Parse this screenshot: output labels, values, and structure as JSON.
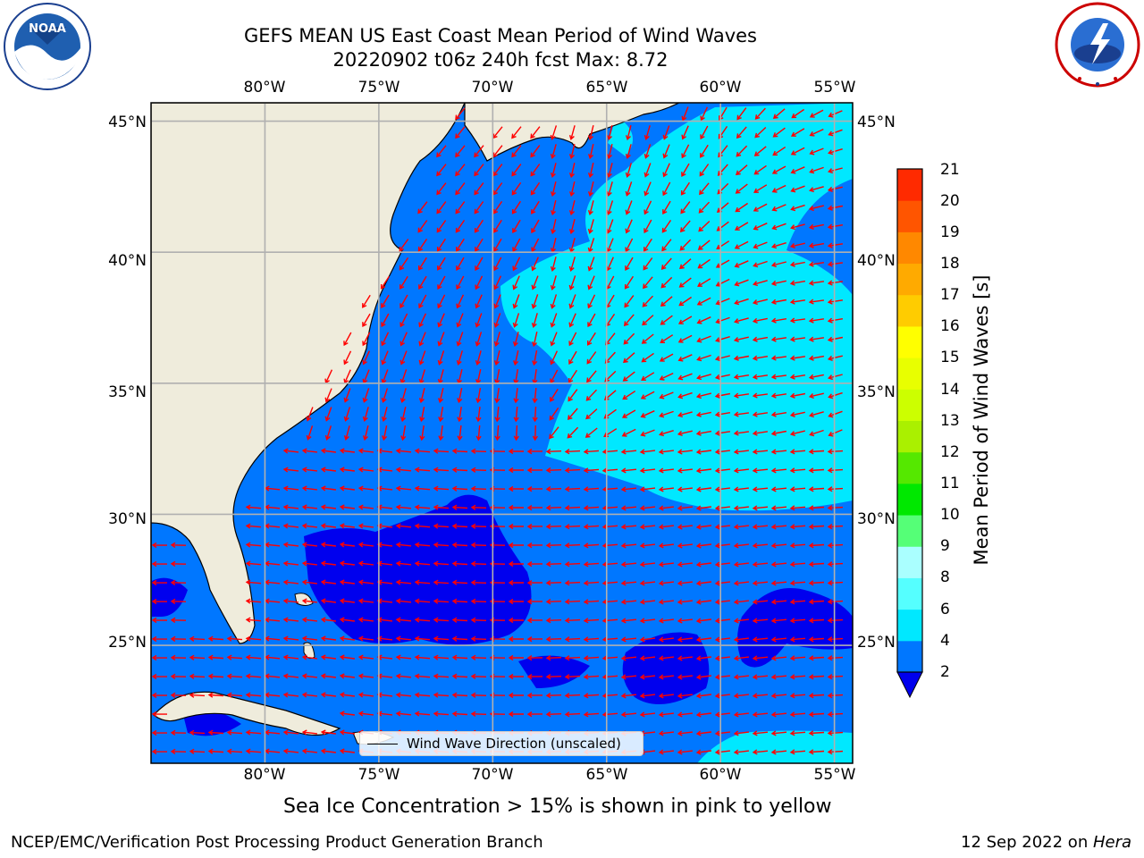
{
  "title": {
    "line1": "GEFS MEAN US East Coast Mean Period of Wind Waves",
    "line2": "20220902 t06z 240h fcst   Max: 8.72"
  },
  "logos": {
    "left_name": "NOAA",
    "left_ring_text": "NATIONAL OCEANIC AND ATMOSPHERIC ADMINISTRATION · U.S. DEPARTMENT OF COMMERCE",
    "right_ring_text": "NATIONAL WEATHER SERVICE"
  },
  "map": {
    "lon_ticks": [
      "80°W",
      "75°W",
      "70°W",
      "65°W",
      "60°W",
      "55°W"
    ],
    "lat_ticks": [
      "45°N",
      "40°N",
      "35°N",
      "30°N",
      "25°N"
    ],
    "lon_values": [
      -80,
      -75,
      -70,
      -65,
      -60,
      -55
    ],
    "lat_values": [
      45,
      40,
      35,
      30,
      25
    ],
    "lon_range": [
      -85,
      -54.2
    ],
    "lat_range": [
      20.5,
      45.7
    ],
    "legend_label": "Wind Wave Direction (unscaled)",
    "arrow_color": "#ff0000",
    "land_color": "#efecdc",
    "grid_color": "#b0b0b0"
  },
  "colorbar": {
    "label": "Mean Period of Wind Waves [s]",
    "ticks": [
      "2",
      "4",
      "6",
      "8",
      "9",
      "10",
      "11",
      "12",
      "13",
      "14",
      "15",
      "16",
      "17",
      "18",
      "19",
      "20",
      "21"
    ],
    "levels": [
      2,
      4,
      6,
      8,
      9,
      10,
      11,
      12,
      13,
      14,
      15,
      16,
      17,
      18,
      19,
      20,
      21
    ],
    "colors": [
      "#0077ff",
      "#00e8ff",
      "#55ffff",
      "#aaffff",
      "#55ff77",
      "#00e800",
      "#55e800",
      "#aaf000",
      "#ccff00",
      "#e8ff00",
      "#ffff00",
      "#ffcc00",
      "#ffaa00",
      "#ff8800",
      "#ff5500",
      "#ff2a00",
      "#ff0000"
    ],
    "under_color": "#0000ee"
  },
  "ice_note": "Sea Ice Concentration > 15% is shown in pink to yellow",
  "footer": {
    "left": "NCEP/EMC/Verification Post Processing Product Generation Branch",
    "right_date": "12 Sep 2022 on ",
    "right_site": "Hera"
  }
}
